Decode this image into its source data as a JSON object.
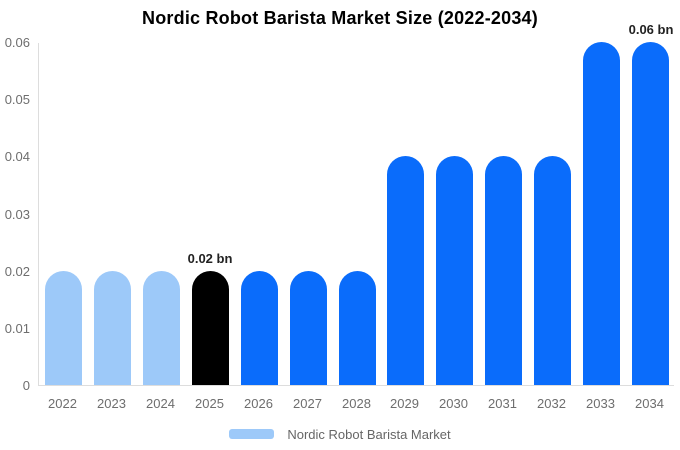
{
  "chart_data": {
    "type": "bar",
    "title": "Nordic Robot Barista Market Size (2022-2034)",
    "categories": [
      "2022",
      "2023",
      "2024",
      "2025",
      "2026",
      "2027",
      "2028",
      "2029",
      "2030",
      "2031",
      "2032",
      "2033",
      "2034"
    ],
    "values": [
      0.02,
      0.02,
      0.02,
      0.02,
      0.02,
      0.02,
      0.02,
      0.04,
      0.04,
      0.04,
      0.04,
      0.06,
      0.06
    ],
    "bar_colors": [
      "#9dc9f9",
      "#9dc9f9",
      "#9dc9f9",
      "#000000",
      "#0a6cfb",
      "#0a6cfb",
      "#0a6cfb",
      "#0a6cfb",
      "#0a6cfb",
      "#0a6cfb",
      "#0a6cfb",
      "#0a6cfb",
      "#0a6cfb"
    ],
    "annotations": [
      {
        "category_index": 3,
        "text": "0.02 bn"
      },
      {
        "category_index": 12,
        "text": "0.06 bn"
      }
    ],
    "xlabel": "",
    "ylabel": "",
    "ylim": [
      0,
      0.06
    ],
    "ytick_labels": [
      "0",
      "0.01",
      "0.02",
      "0.03",
      "0.04",
      "0.05",
      "0.06"
    ],
    "grid": false,
    "legend": {
      "position": "bottom",
      "items": [
        {
          "label": "Nordic Robot Barista Market",
          "color": "#9dc9f9"
        }
      ]
    }
  },
  "colors": {
    "series_blue": "#0a6cfb",
    "series_light_blue": "#9dc9f9",
    "highlight_black": "#000000",
    "axis_line": "#dddddd",
    "tick_text": "#6e6e6e",
    "annotation_text": "#222222",
    "title_text": "#000000",
    "background": "#ffffff"
  }
}
